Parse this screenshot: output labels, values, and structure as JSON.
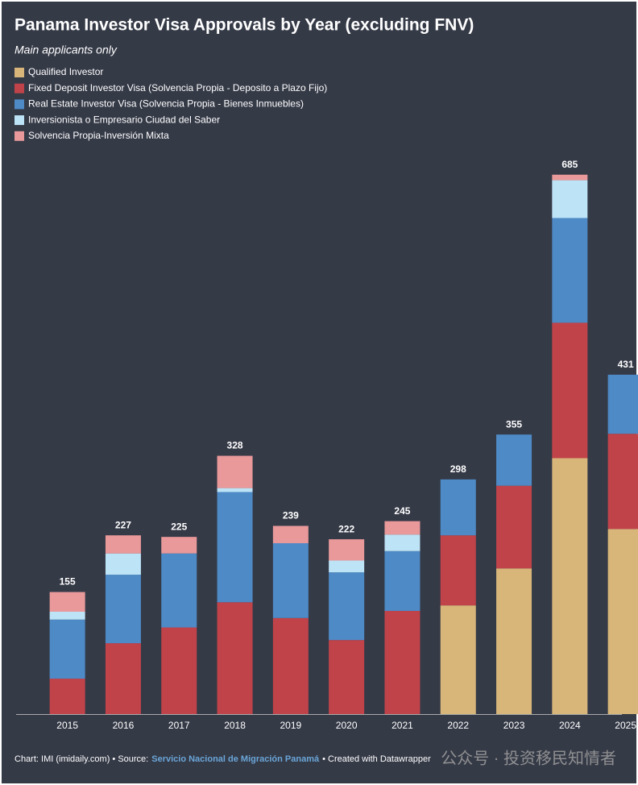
{
  "chart_data": {
    "type": "stacked-bar",
    "title": "Panama Investor Visa Approvals by Year (excluding FNV)",
    "subtitle": "Main applicants only",
    "categories": [
      "2015",
      "2016",
      "2017",
      "2018",
      "2019",
      "2020",
      "2021",
      "2022",
      "2023",
      "2024",
      "2025"
    ],
    "series": [
      {
        "name": "Qualified Investor",
        "color": "#d8b67a",
        "values": [
          null,
          null,
          null,
          null,
          null,
          null,
          null,
          138,
          185,
          325,
          235
        ]
      },
      {
        "name": "Fixed Deposit Investor Visa (Solvencia Propia - Deposito a Plazo Fijo)",
        "color": "#c0434a",
        "values": [
          45,
          90,
          110,
          142,
          122,
          94,
          131,
          89,
          105,
          172,
          121
        ]
      },
      {
        "name": "Real Estate Investor Visa (Solvencia Propia - Bienes Inmuebles)",
        "color": "#4e8ac6",
        "values": [
          75,
          87,
          94,
          140,
          95,
          86,
          76,
          71,
          65,
          133,
          75
        ]
      },
      {
        "name": "Inversionista o Empresario Ciudad del Saber",
        "color": "#bde3f6",
        "values": [
          10,
          27,
          null,
          5,
          null,
          15,
          21,
          null,
          null,
          48,
          null
        ]
      },
      {
        "name": "Solvencia Propia-Inversión Mixta",
        "color": "#e9999a",
        "values": [
          25,
          23,
          21,
          41,
          22,
          27,
          17,
          null,
          null,
          7,
          null
        ]
      }
    ],
    "totals": [
      155,
      227,
      225,
      328,
      239,
      222,
      245,
      298,
      355,
      685,
      431
    ],
    "footer": {
      "credit": "Chart: IMI (imidaily.com) • Source:",
      "source": "Servicio Nacional de Migración Panamá",
      "tool": "• Created with Datawrapper"
    },
    "watermark": "公众号 · 投资移民知情者"
  }
}
